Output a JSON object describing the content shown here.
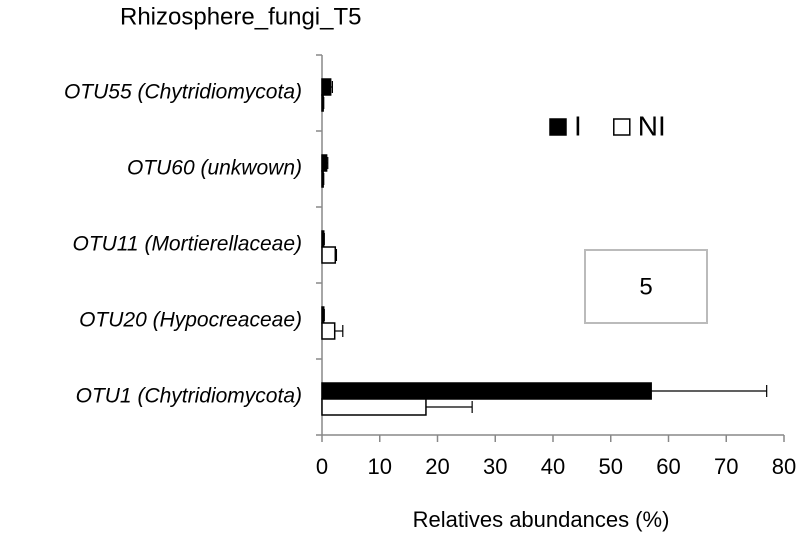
{
  "chart_data": {
    "type": "bar",
    "orientation": "horizontal",
    "title": "Rhizosphere_fungi_T5",
    "x_label": "Relatives abundances (%)",
    "annotation": "5",
    "categories": [
      "OTU55 (Chytridiomycota)",
      "OTU60 (unkwown)",
      "OTU11 (Mortierellaceae)",
      "OTU20 (Hypocreaceae)",
      "OTU1 (Chytridiomycota)"
    ],
    "series": [
      {
        "name": "I",
        "color": "#000000",
        "values": [
          1.5,
          0.8,
          0.3,
          0.3,
          57
        ],
        "errors": [
          0.3,
          0.2,
          0.1,
          0.1,
          20
        ]
      },
      {
        "name": "NI",
        "color": "#ffffff",
        "values": [
          0.2,
          0.2,
          2.3,
          2.2,
          18
        ],
        "errors": [
          0.1,
          0.1,
          0.2,
          1.4,
          8
        ]
      }
    ],
    "xlim": [
      0,
      80
    ],
    "xticks": [
      0,
      10,
      20,
      30,
      40,
      50,
      60,
      70,
      80
    ],
    "legend": "top-right",
    "grid": false
  }
}
